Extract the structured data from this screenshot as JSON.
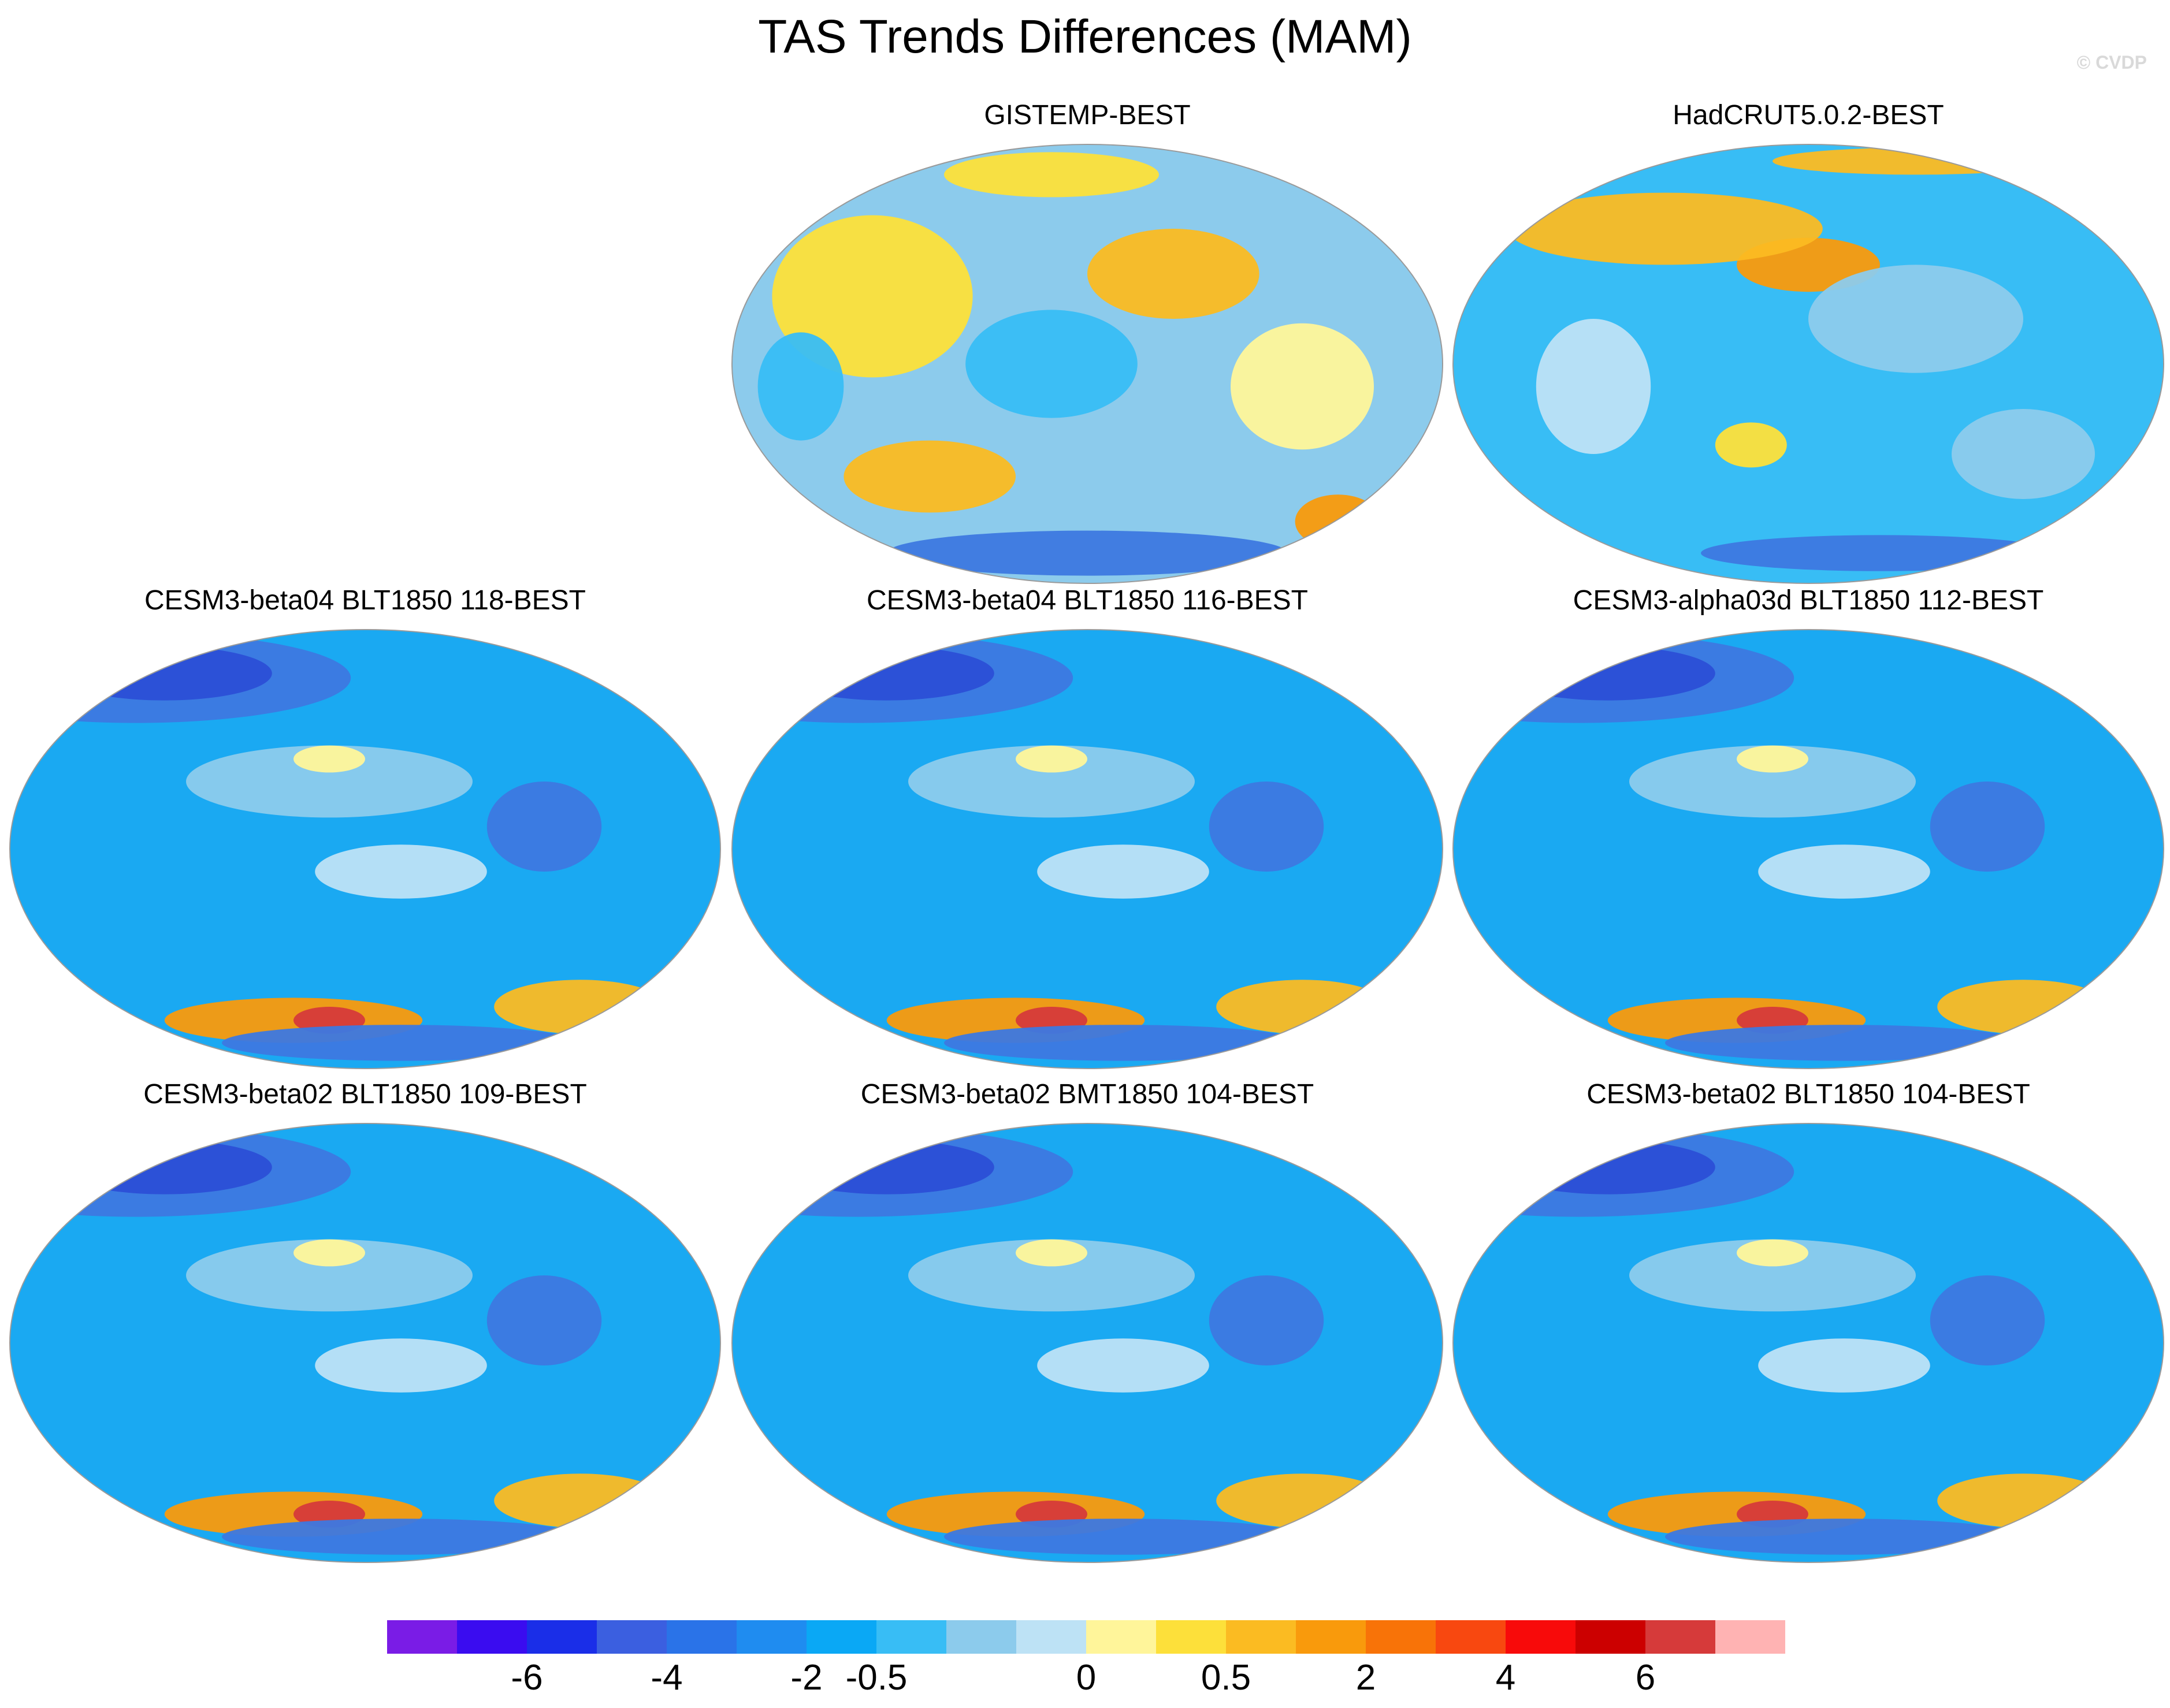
{
  "title": "TAS Trends Differences (MAM)",
  "watermark": "© CVDP",
  "panels": [
    {
      "title": "GISTEMP-BEST",
      "palette": "mixed"
    },
    {
      "title": "HadCRUT5.0.2-BEST",
      "palette": "mixed2"
    },
    {
      "title": "CESM3-beta04 BLT1850 118-BEST",
      "palette": "cool"
    },
    {
      "title": "CESM3-beta04 BLT1850 116-BEST",
      "palette": "cool"
    },
    {
      "title": "CESM3-alpha03d BLT1850 112-BEST",
      "palette": "cool"
    },
    {
      "title": "CESM3-beta02 BLT1850 109-BEST",
      "palette": "cool"
    },
    {
      "title": "CESM3-beta02 BMT1850 104-BEST",
      "palette": "cool"
    },
    {
      "title": "CESM3-beta02 BLT1850 104-BEST",
      "palette": "cool"
    }
  ],
  "colorbar": {
    "colors": [
      "#7a1ce6",
      "#3a0cf0",
      "#1a2ee8",
      "#3b5fe0",
      "#2a73e8",
      "#1f8cf0",
      "#0aa8f5",
      "#38bdf5",
      "#8ccbec",
      "#bde2f5",
      "#fff59a",
      "#fde03a",
      "#fbbb22",
      "#f99a0c",
      "#f87308",
      "#f84810",
      "#f80a0a",
      "#cc0000",
      "#d63a3a",
      "#ffb3b3"
    ],
    "labels": [
      "-6",
      "-4",
      "-2",
      "-0.5",
      "0",
      "0.5",
      "2",
      "4",
      "6"
    ]
  }
}
